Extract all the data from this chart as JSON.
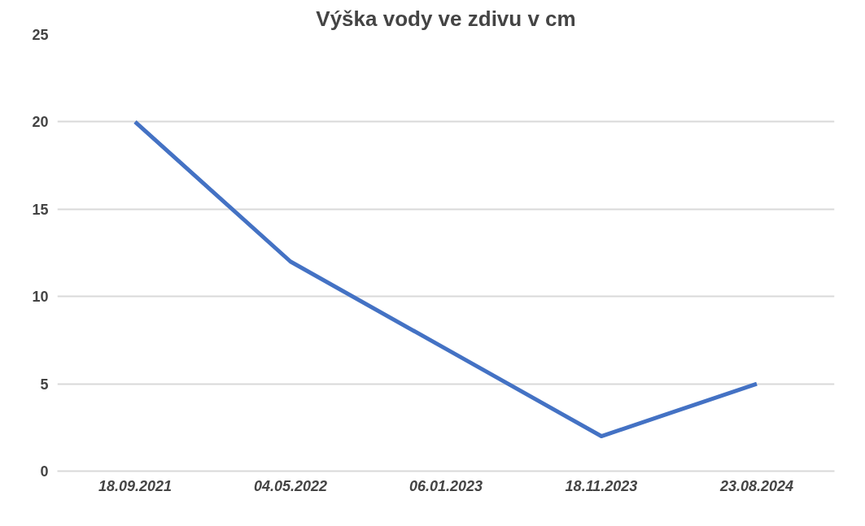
{
  "chart_data": {
    "type": "line",
    "title": "Výška vody ve zdivu v cm",
    "categories": [
      "18.09.2021",
      "04.05.2022",
      "06.01.2023",
      "18.11.2023",
      "23.08.2024"
    ],
    "series": [
      {
        "color": "#4472c4",
        "values": [
          20,
          12,
          7,
          2,
          5
        ]
      }
    ],
    "ylim": [
      0,
      25
    ],
    "yticks": [
      0,
      5,
      10,
      15,
      20,
      25
    ],
    "grid": "y",
    "marker": "none",
    "line_style": "solid"
  }
}
